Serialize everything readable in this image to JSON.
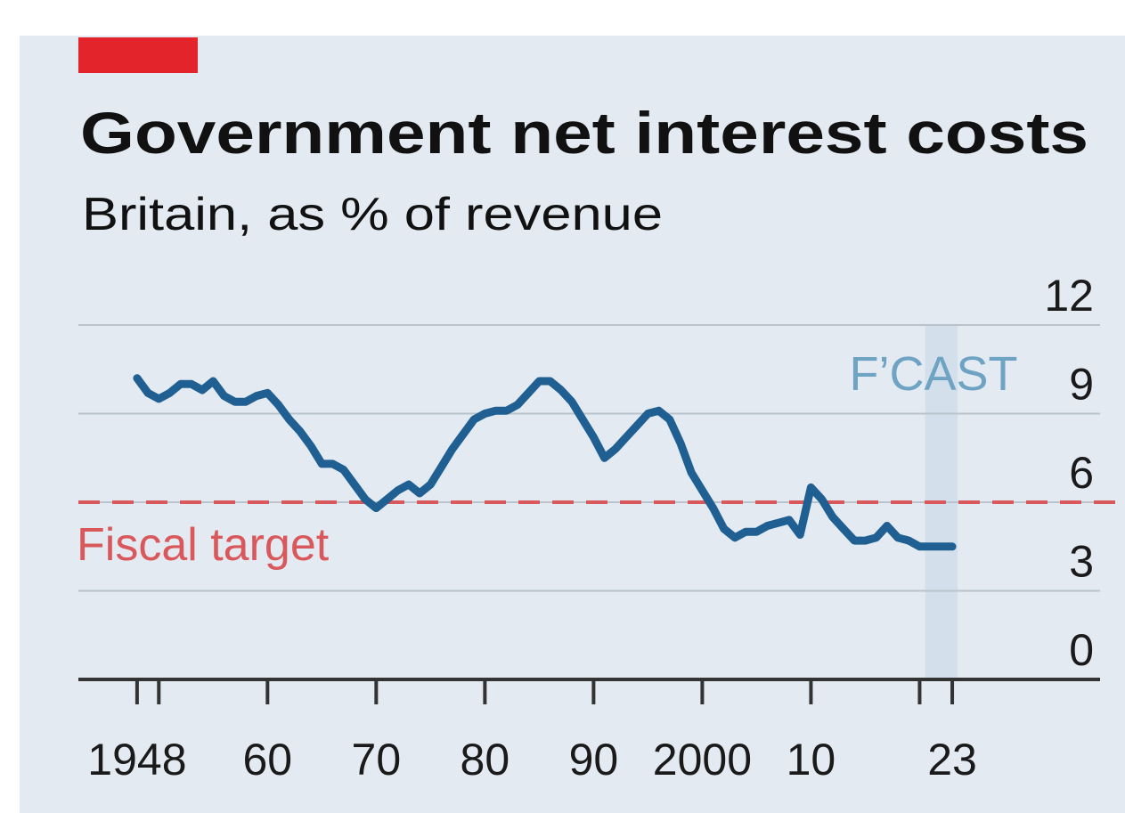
{
  "chart_data": {
    "type": "line",
    "title": "Government net interest costs",
    "subtitle": "Britain, as % of revenue",
    "x": [
      1948,
      1949,
      1950,
      1951,
      1952,
      1953,
      1954,
      1955,
      1956,
      1957,
      1958,
      1959,
      1960,
      1961,
      1962,
      1963,
      1964,
      1965,
      1966,
      1967,
      1968,
      1969,
      1970,
      1971,
      1972,
      1973,
      1974,
      1975,
      1976,
      1977,
      1978,
      1979,
      1980,
      1981,
      1982,
      1983,
      1984,
      1985,
      1986,
      1987,
      1988,
      1989,
      1990,
      1991,
      1992,
      1993,
      1994,
      1995,
      1996,
      1997,
      1998,
      1999,
      2000,
      2001,
      2002,
      2003,
      2004,
      2005,
      2006,
      2007,
      2008,
      2009,
      2010,
      2011,
      2012,
      2013,
      2014,
      2015,
      2016,
      2017,
      2018,
      2019,
      2020,
      2021,
      2022,
      2023
    ],
    "series": [
      {
        "name": "Net interest costs",
        "color": "#1f5f91",
        "values": [
          10.2,
          9.7,
          9.5,
          9.7,
          10.0,
          10.0,
          9.8,
          10.1,
          9.6,
          9.4,
          9.4,
          9.6,
          9.7,
          9.3,
          8.8,
          8.4,
          7.9,
          7.3,
          7.3,
          7.1,
          6.6,
          6.1,
          5.8,
          6.1,
          6.4,
          6.6,
          6.3,
          6.6,
          7.2,
          7.8,
          8.3,
          8.8,
          9.0,
          9.1,
          9.1,
          9.3,
          9.7,
          10.1,
          10.1,
          9.8,
          9.4,
          8.8,
          8.2,
          7.5,
          7.8,
          8.2,
          8.6,
          9.0,
          9.1,
          8.8,
          8.0,
          7.0,
          6.4,
          5.8,
          5.1,
          4.8,
          5.0,
          5.0,
          5.2,
          5.3,
          5.4,
          4.9,
          6.5,
          6.1,
          5.5,
          5.1,
          4.7,
          4.7,
          4.8,
          5.2,
          4.8,
          4.7,
          4.5,
          4.5,
          4.5,
          4.5
        ]
      }
    ],
    "xlim": [
      1942.6,
      2036.6
    ],
    "xticks": [
      1948,
      {
        "value": 1960,
        "label": "60"
      },
      {
        "value": 1970,
        "label": "70"
      },
      {
        "value": 1980,
        "label": "80"
      },
      {
        "value": 1990,
        "label": "90"
      },
      2000,
      {
        "value": 2010,
        "label": "10"
      },
      {
        "value": 2023,
        "label": "23"
      }
    ],
    "minor_xticks": [
      1950,
      2020
    ],
    "ylim": [
      0,
      12
    ],
    "yticks": [
      0,
      3,
      6,
      9,
      12
    ],
    "grid": true,
    "target": {
      "value": 6,
      "label": "Fiscal target",
      "color": "#d9585c"
    },
    "forecast": {
      "start": 2020.5,
      "end": 2023.5,
      "label": "F’CAST",
      "color": "#6fa3c4"
    }
  }
}
